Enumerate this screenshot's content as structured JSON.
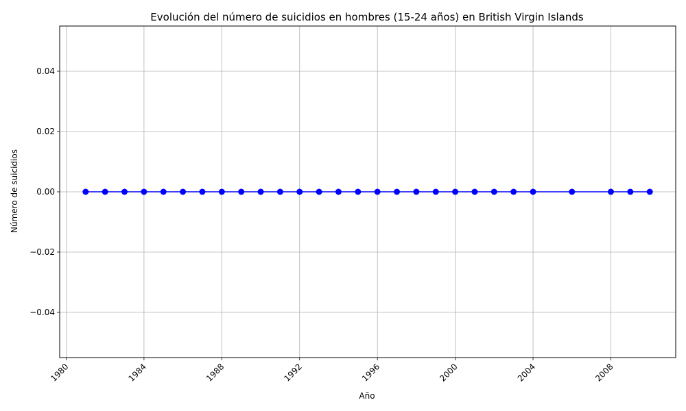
{
  "chart_data": {
    "type": "line",
    "title": "Evolución del número de suicidios en hombres (15-24 años) en British Virgin Islands",
    "xlabel": "Año",
    "ylabel": "Número de suicidios",
    "x_axis_type": "date",
    "xlim": [
      "1979-09",
      "2011-05"
    ],
    "ylim": [
      -0.055,
      0.055
    ],
    "x_ticks": [
      "1980",
      "1984",
      "1988",
      "1992",
      "1996",
      "2000",
      "2004",
      "2008"
    ],
    "y_ticks": [
      "−0.04",
      "−0.02",
      "0.00",
      "0.02",
      "0.04"
    ],
    "y_tick_values": [
      -0.04,
      -0.02,
      0.0,
      0.02,
      0.04
    ],
    "grid": true,
    "legend": "none",
    "series": [
      {
        "color": "#0000ff",
        "marker": "circle",
        "x": [
          1981,
          1982,
          1983,
          1984,
          1985,
          1986,
          1987,
          1988,
          1989,
          1990,
          1991,
          1992,
          1993,
          1994,
          1995,
          1996,
          1997,
          1998,
          1999,
          2000,
          2001,
          2002,
          2003,
          2004,
          2006,
          2008,
          2009,
          2010
        ],
        "values": [
          0,
          0,
          0,
          0,
          0,
          0,
          0,
          0,
          0,
          0,
          0,
          0,
          0,
          0,
          0,
          0,
          0,
          0,
          0,
          0,
          0,
          0,
          0,
          0,
          0,
          0,
          0,
          0
        ]
      }
    ]
  }
}
